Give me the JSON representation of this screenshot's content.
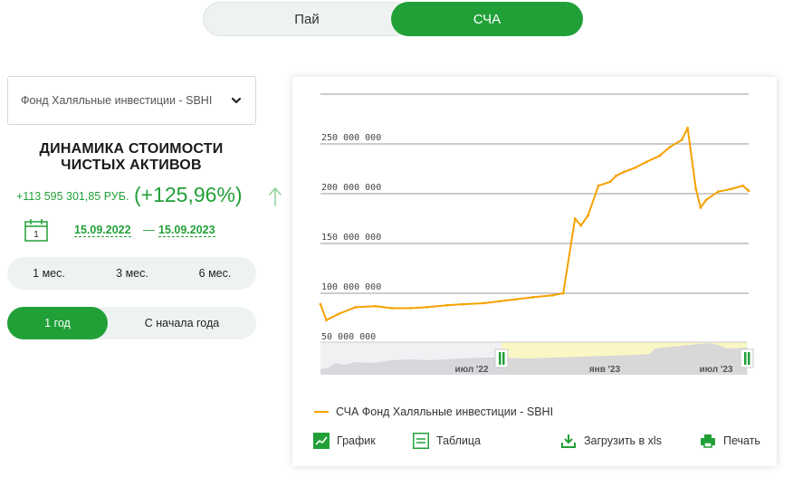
{
  "toggle": {
    "left_label": "Пай",
    "right_label": "СЧА",
    "active": "СЧА"
  },
  "fund_select": {
    "value": "Фонд Халяльные инвестиции - SBHI"
  },
  "title": {
    "line1": "ДИНАМИКА СТОИМОСТИ",
    "line2": "ЧИСТЫХ АКТИВОВ"
  },
  "change": {
    "absolute": "+113 595 301,85 РУБ.",
    "percent": "(+125,96%)",
    "direction": "up"
  },
  "calendar": {
    "day": "1"
  },
  "date_range": {
    "from": "15.09.2022",
    "separator": "—",
    "to": "15.09.2023"
  },
  "periods_row1": [
    {
      "label": "1 мес."
    },
    {
      "label": "3 мес."
    },
    {
      "label": "6 мес."
    }
  ],
  "periods_row2": [
    {
      "label": "1 год",
      "active": true
    },
    {
      "label": "С начала года"
    }
  ],
  "chart": {
    "legend": "СЧА Фонд Халяльные инвестиции - SBHI",
    "navigator_labels": [
      "июл '22",
      "янв '23",
      "июл '23"
    ],
    "series_color": "#f5a200"
  },
  "actions": {
    "graph": "График",
    "table": "Таблица",
    "xls": "Загрузить в xls",
    "print": "Печать"
  },
  "colors": {
    "accent": "#21a038",
    "series": "#f5a200"
  },
  "chart_data": {
    "type": "line",
    "ylim": [
      50000000,
      300000000
    ],
    "yticks": [
      "50 000 000",
      "100 000 000",
      "150 000 000",
      "200 000 000",
      "250 000 000"
    ],
    "grid": true,
    "legend_position": "bottom-left",
    "series": [
      {
        "name": "СЧА Фонд Халяльные инвестиции - SBHI",
        "x": [
          "15.09.2022",
          "20.09.2022",
          "30.09.2022",
          "15.10.2022",
          "01.11.2022",
          "15.11.2022",
          "01.12.2022",
          "15.12.2022",
          "01.01.2023",
          "15.01.2023",
          "01.02.2023",
          "15.02.2023",
          "01.03.2023",
          "15.03.2023",
          "01.04.2023",
          "10.04.2023",
          "20.04.2023",
          "25.04.2023",
          "01.05.2023",
          "10.05.2023",
          "20.05.2023",
          "25.05.2023",
          "01.06.2023",
          "10.06.2023",
          "20.06.2023",
          "01.07.2023",
          "10.07.2023",
          "20.07.2023",
          "25.07.2023",
          "01.08.2023",
          "05.08.2023",
          "10.08.2023",
          "20.08.2023",
          "01.09.2023",
          "10.09.2023",
          "15.09.2023"
        ],
        "values": [
          89000000,
          73000000,
          79000000,
          86000000,
          87000000,
          85000000,
          85000000,
          86000000,
          88000000,
          89000000,
          90000000,
          92000000,
          94000000,
          96000000,
          98000000,
          100000000,
          175000000,
          168000000,
          178000000,
          208000000,
          212000000,
          218000000,
          222000000,
          226000000,
          232000000,
          238000000,
          247000000,
          254000000,
          266000000,
          205000000,
          186000000,
          194000000,
          202000000,
          205000000,
          208000000,
          203000000
        ]
      }
    ]
  }
}
